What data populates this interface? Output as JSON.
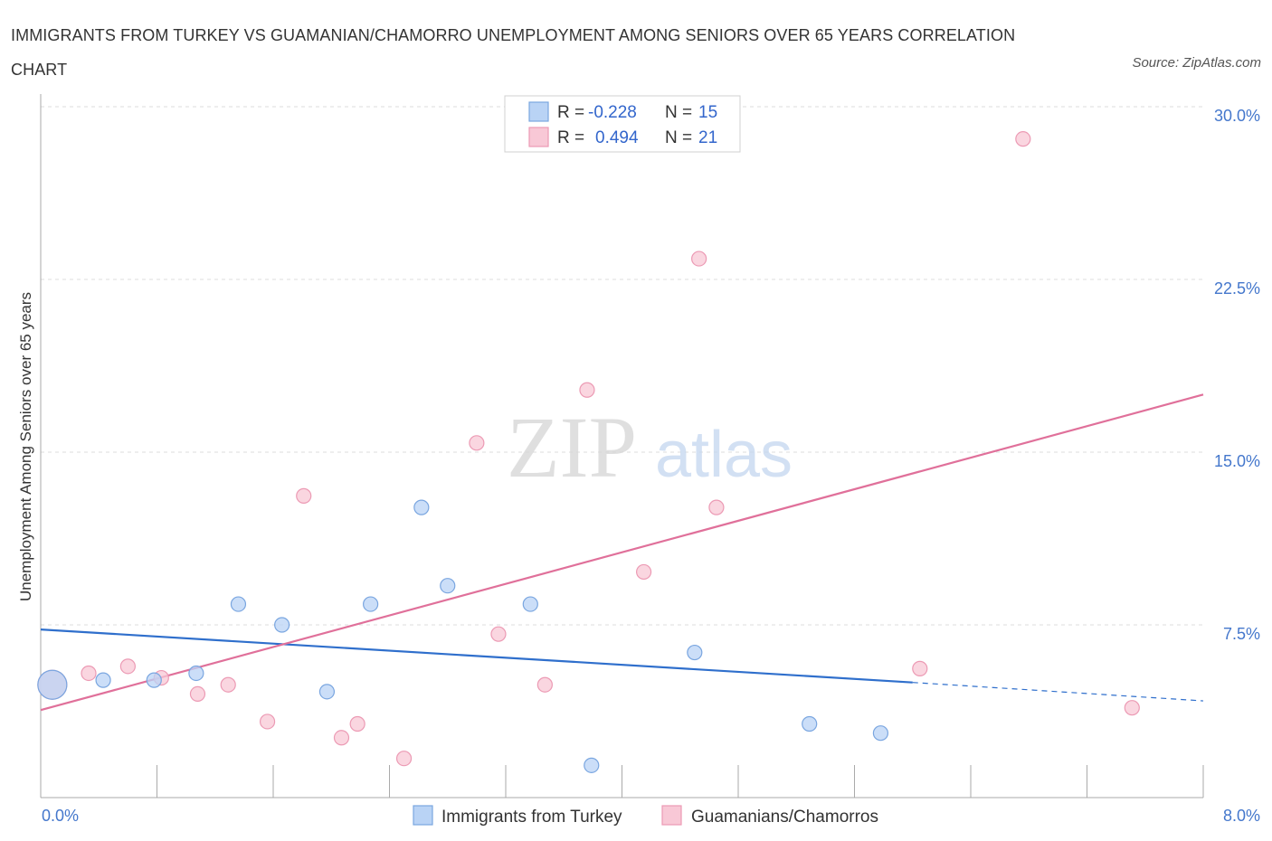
{
  "header": {
    "title": "IMMIGRANTS FROM TURKEY VS GUAMANIAN/CHAMORRO UNEMPLOYMENT AMONG SENIORS OVER 65 YEARS CORRELATION CHART",
    "source": "Source: ZipAtlas.com"
  },
  "watermark": {
    "zip": "ZIP",
    "atlas": "atlas"
  },
  "colors": {
    "turkey_fill": "#b9d3f5",
    "turkey_stroke": "#7aa6e0",
    "turkey_line": "#2f6fcc",
    "guam_fill": "#f8c8d6",
    "guam_stroke": "#ec9ab4",
    "guam_line": "#e0709a",
    "accent_text": "#4477cc"
  },
  "legend": {
    "r_label": "R =",
    "n_label": "N =",
    "turkey": {
      "r": "-0.228",
      "n": "15"
    },
    "guam": {
      "r": "0.494",
      "n": "21"
    }
  },
  "chart_data": {
    "type": "scatter",
    "title": "IMMIGRANTS FROM TURKEY VS GUAMANIAN/CHAMORRO UNEMPLOYMENT AMONG SENIORS OVER 65 YEARS CORRELATION CHART",
    "xlabel": "",
    "ylabel": "Unemployment Among Seniors over 65 years",
    "xlim": [
      0,
      8
    ],
    "ylim": [
      0,
      30
    ],
    "x_tick_labels": [
      "0.0%",
      "8.0%"
    ],
    "y_ticks": [
      {
        "value": 7.5,
        "label": "7.5%"
      },
      {
        "value": 15,
        "label": "15.0%"
      },
      {
        "value": 22.5,
        "label": "22.5%"
      },
      {
        "value": 30,
        "label": "30.0%"
      }
    ],
    "grid": true,
    "legend_position": "top-center",
    "series": [
      {
        "name": "Immigrants from Turkey",
        "r": -0.228,
        "n": 15,
        "points": [
          [
            0.08,
            4.9,
            "large"
          ],
          [
            0.43,
            5.1
          ],
          [
            0.78,
            5.1
          ],
          [
            1.07,
            5.4
          ],
          [
            1.36,
            8.4
          ],
          [
            1.66,
            7.5
          ],
          [
            1.97,
            4.6
          ],
          [
            2.27,
            8.4
          ],
          [
            2.62,
            12.6
          ],
          [
            2.8,
            9.2
          ],
          [
            3.37,
            8.4
          ],
          [
            3.79,
            1.4
          ],
          [
            4.5,
            6.3
          ],
          [
            5.29,
            3.2
          ],
          [
            5.78,
            2.8
          ]
        ],
        "trend": {
          "x0": 0,
          "y0": 7.3,
          "x1": 6.0,
          "y1": 5.0,
          "dash_to_x": 8.0,
          "dash_to_y": 4.2
        }
      },
      {
        "name": "Guamanians/Chamorros",
        "r": 0.494,
        "n": 21,
        "points": [
          [
            0.08,
            4.9,
            "large"
          ],
          [
            0.33,
            5.4
          ],
          [
            0.6,
            5.7
          ],
          [
            0.83,
            5.2
          ],
          [
            1.08,
            4.5
          ],
          [
            1.29,
            4.9
          ],
          [
            1.56,
            3.3
          ],
          [
            1.81,
            13.1
          ],
          [
            2.07,
            2.6
          ],
          [
            2.18,
            3.2
          ],
          [
            2.5,
            1.7
          ],
          [
            3.0,
            15.4
          ],
          [
            3.15,
            7.1
          ],
          [
            3.47,
            4.9
          ],
          [
            3.76,
            17.7
          ],
          [
            4.15,
            9.8
          ],
          [
            4.53,
            23.4
          ],
          [
            4.65,
            12.6
          ],
          [
            6.05,
            5.6
          ],
          [
            6.76,
            28.6
          ],
          [
            7.51,
            3.9
          ]
        ],
        "trend": {
          "x0": 0,
          "y0": 3.8,
          "x1": 8.0,
          "y1": 17.5
        }
      }
    ]
  },
  "bottom_legend": {
    "turkey_label": "Immigrants from Turkey",
    "guam_label": "Guamanians/Chamorros"
  }
}
